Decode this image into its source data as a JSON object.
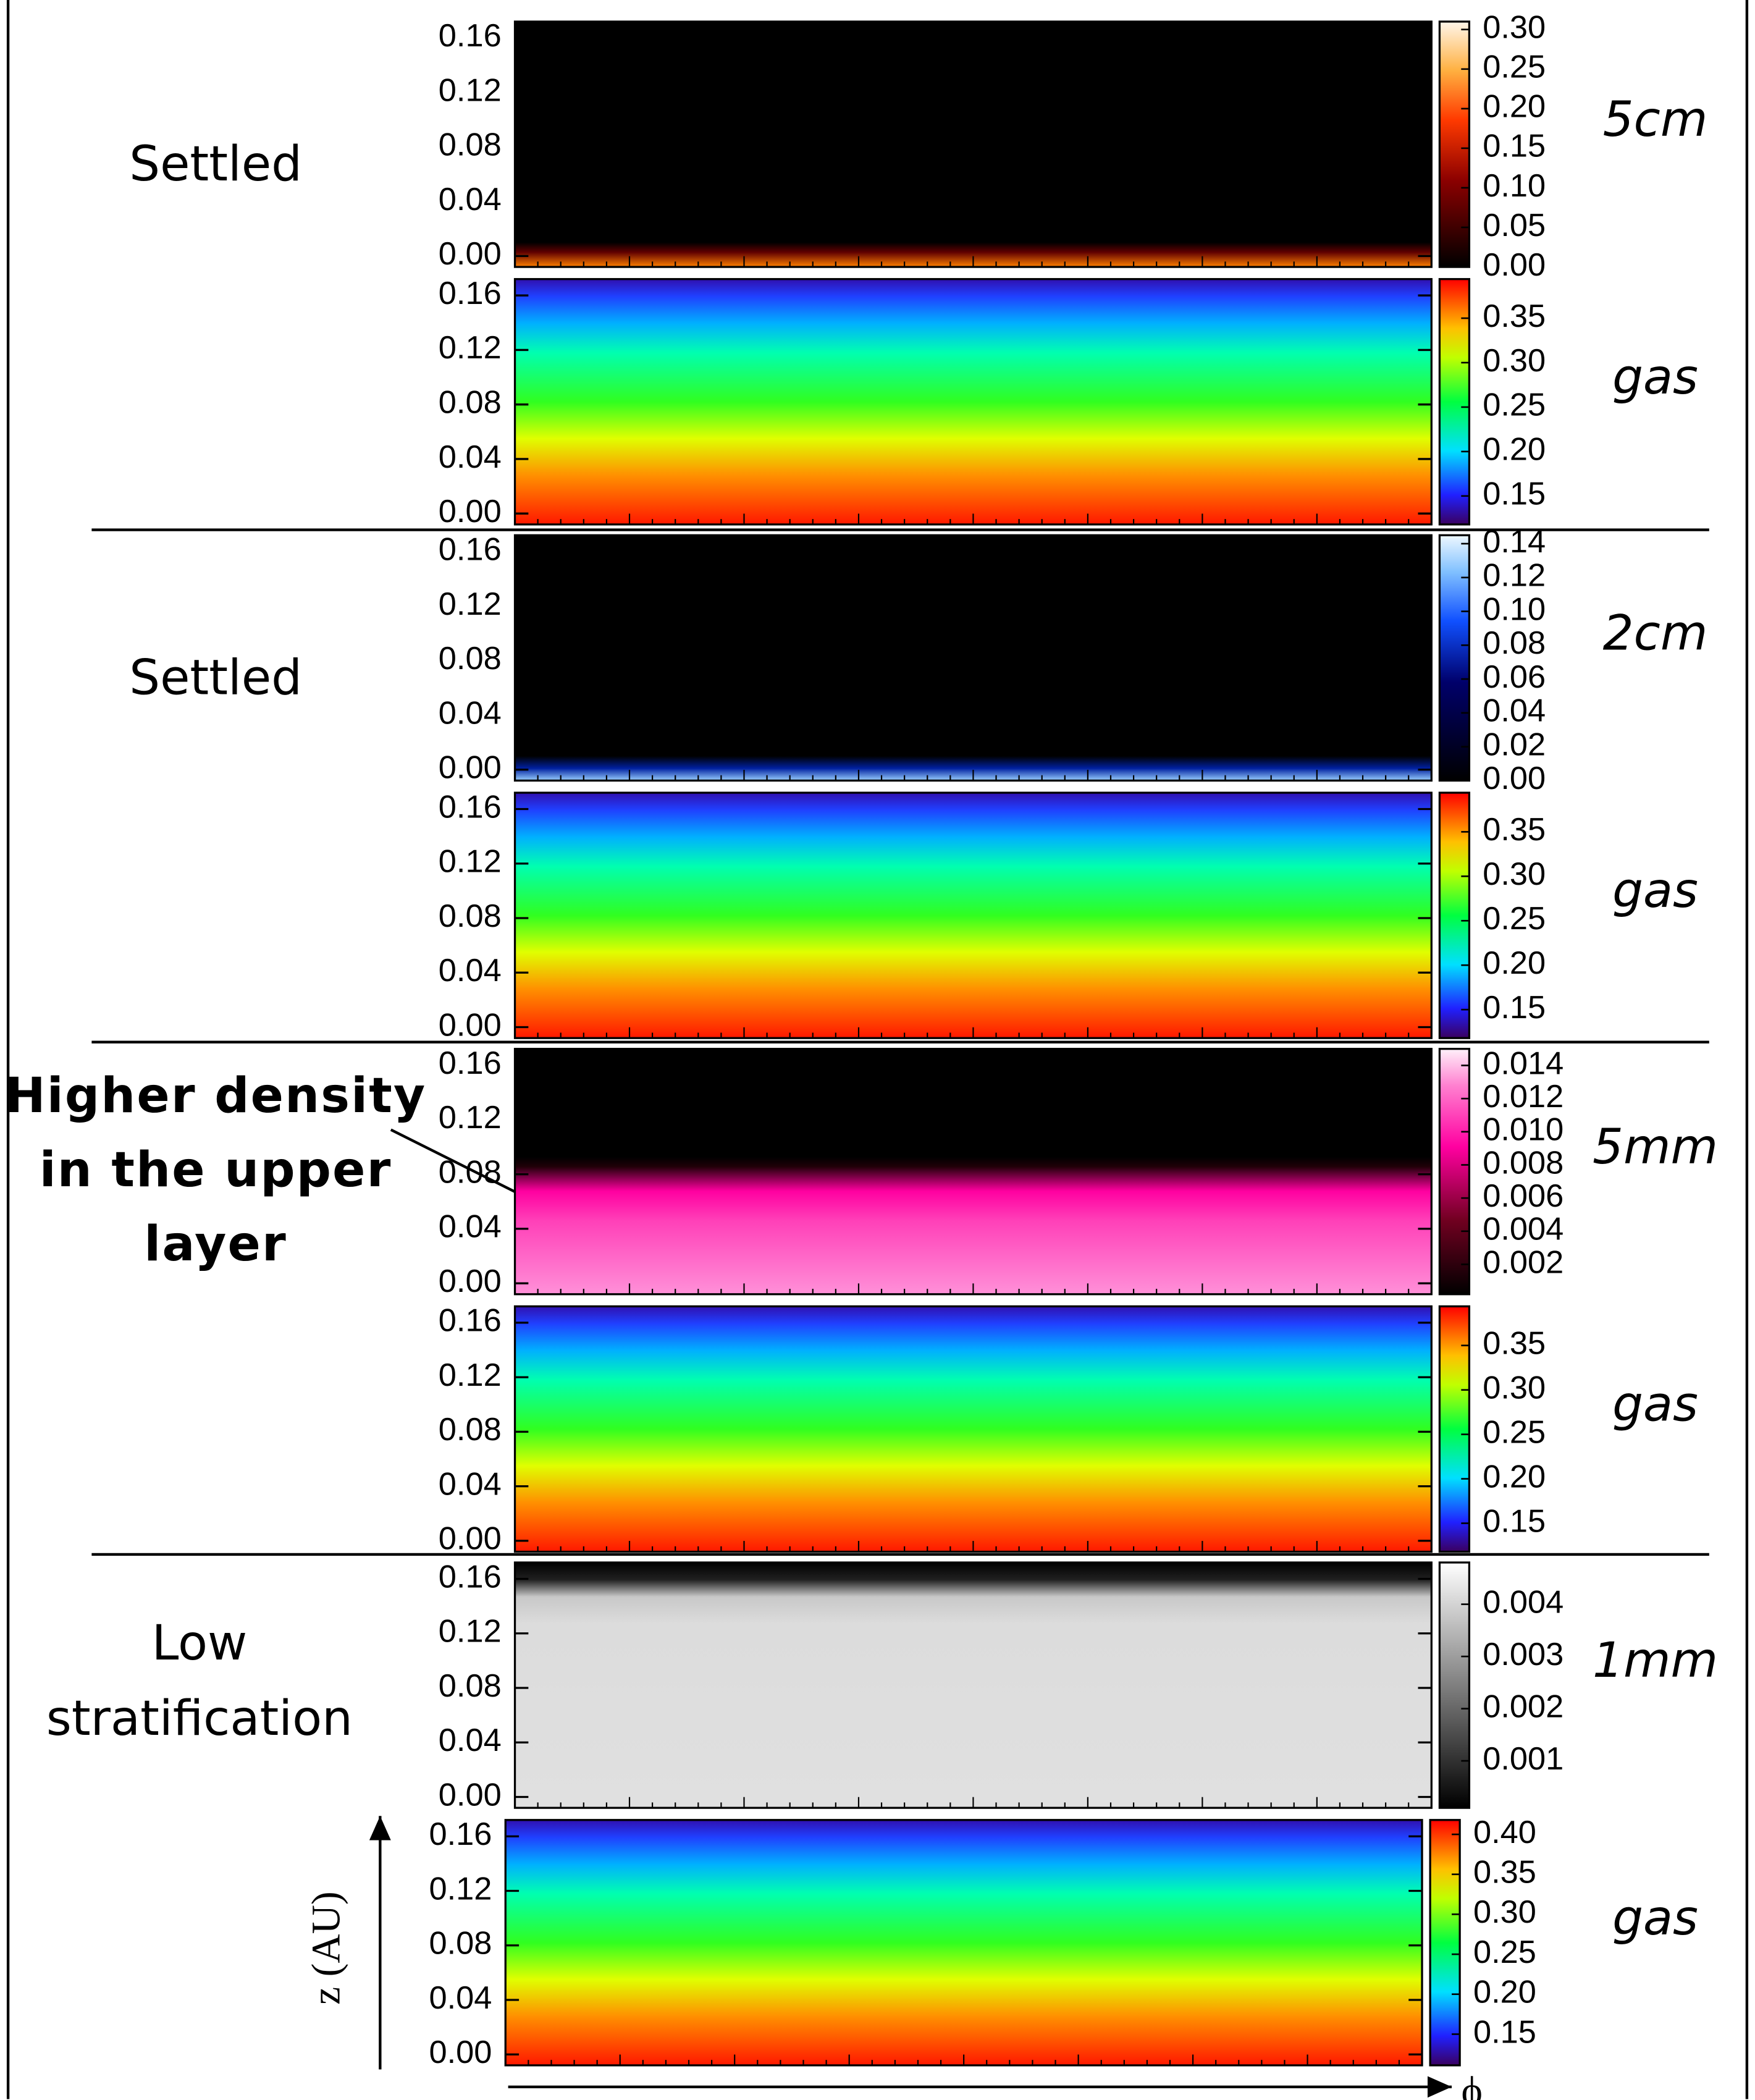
{
  "chart_data": [
    {
      "type": "heatmap",
      "colormap": "hot",
      "label": "5cm",
      "group_label": [
        "Settled"
      ],
      "ylim": [
        -0.008,
        0.172
      ],
      "yticks": [
        {
          "value": 0,
          "label": "0.00"
        },
        0.04,
        0.08,
        0.12,
        0.16
      ],
      "clim": [
        0,
        0.31
      ],
      "cticks": [
        {
          "value": 0,
          "label": "0.00"
        },
        0.05,
        {
          "value": 0.1,
          "label": "0.10"
        },
        0.15,
        {
          "value": 0.2,
          "label": "0.20"
        },
        0.25,
        {
          "value": 0.3,
          "label": "0.30"
        }
      ]
    },
    {
      "type": "heatmap",
      "colormap": "rainbow",
      "label": "gas",
      "ylim": [
        -0.008,
        0.172
      ],
      "yticks": [
        {
          "value": 0,
          "label": "0.00"
        },
        0.04,
        0.08,
        0.12,
        0.16
      ],
      "clim": [
        0.118,
        0.394
      ],
      "cticks": [
        0.15,
        {
          "value": 0.2,
          "label": "0.20"
        },
        0.25,
        {
          "value": 0.3,
          "label": "0.30"
        },
        0.35
      ]
    },
    {
      "type": "heatmap",
      "colormap": "blues",
      "label": "2cm",
      "group_label": [
        "Settled"
      ],
      "ylim": [
        -0.008,
        0.172
      ],
      "yticks": [
        {
          "value": 0,
          "label": "0.00"
        },
        0.04,
        0.08,
        0.12,
        0.16
      ],
      "clim": [
        0,
        0.145
      ],
      "cticks": [
        {
          "value": 0,
          "label": "0.00"
        },
        0.02,
        0.04,
        0.06,
        0.08,
        {
          "value": 0.1,
          "label": "0.10"
        },
        0.12,
        0.14
      ]
    },
    {
      "type": "heatmap",
      "colormap": "rainbow",
      "label": "gas",
      "ylim": [
        -0.008,
        0.172
      ],
      "yticks": [
        {
          "value": 0,
          "label": "0.00"
        },
        0.04,
        0.08,
        0.12,
        0.16
      ],
      "clim": [
        0.118,
        0.394
      ],
      "cticks": [
        0.15,
        {
          "value": 0.2,
          "label": "0.20"
        },
        0.25,
        {
          "value": 0.3,
          "label": "0.30"
        },
        0.35
      ]
    },
    {
      "type": "heatmap",
      "colormap": "pink",
      "label": "5mm",
      "annotation": [
        "Higher density",
        "in the upper",
        "layer"
      ],
      "ylim": [
        -0.008,
        0.172
      ],
      "yticks": [
        {
          "value": 0,
          "label": "0.00"
        },
        0.04,
        0.08,
        0.12,
        0.16
      ],
      "clim": [
        0.0002,
        0.015
      ],
      "cticks": [
        0.002,
        0.004,
        0.006,
        0.008,
        {
          "value": 0.01,
          "label": "0.010"
        },
        0.012,
        0.014
      ]
    },
    {
      "type": "heatmap",
      "colormap": "rainbow",
      "label": "gas",
      "ylim": [
        -0.008,
        0.172
      ],
      "yticks": [
        {
          "value": 0,
          "label": "0.00"
        },
        0.04,
        0.08,
        0.12,
        0.16
      ],
      "clim": [
        0.118,
        0.394
      ],
      "cticks": [
        0.15,
        {
          "value": 0.2,
          "label": "0.20"
        },
        0.25,
        {
          "value": 0.3,
          "label": "0.30"
        },
        0.35
      ]
    },
    {
      "type": "heatmap",
      "colormap": "gray",
      "label": "1mm",
      "group_label": [
        "Low",
        "stratification"
      ],
      "ylim": [
        -0.008,
        0.172
      ],
      "yticks": [
        {
          "value": 0,
          "label": "0.00"
        },
        0.04,
        0.08,
        0.12,
        0.16
      ],
      "clim": [
        0.0001,
        0.0048
      ],
      "cticks": [
        0.001,
        0.002,
        0.003,
        0.004
      ]
    },
    {
      "type": "heatmap",
      "colormap": "rainbow",
      "label": "gas",
      "y_label": "z (AU)",
      "x_label": "ϕ",
      "ylim": [
        -0.008,
        0.172
      ],
      "yticks": [
        {
          "value": 0,
          "label": "0.00"
        },
        0.04,
        0.08,
        0.12,
        0.16
      ],
      "clim": [
        0.111,
        0.418
      ],
      "cticks": [
        0.15,
        {
          "value": 0.2,
          "label": "0.20"
        },
        0.25,
        {
          "value": 0.3,
          "label": "0.30"
        },
        0.35,
        {
          "value": 0.4,
          "label": "0.40"
        }
      ]
    }
  ]
}
